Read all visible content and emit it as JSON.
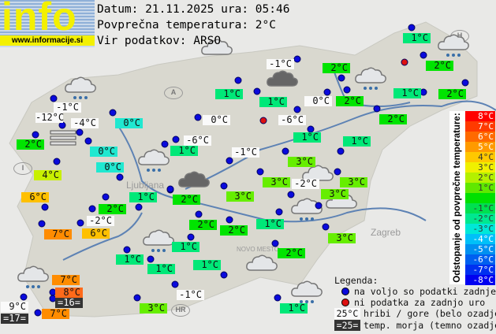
{
  "logo": {
    "text": "info",
    "url": "www.informacije.si"
  },
  "header": {
    "date_line": "Datum: 21.11.2025 ura: 05:46",
    "avg_line": "Povprečna temperatura: 2°C",
    "source_line": "Vir podatkov: ARSO"
  },
  "map_labels": {
    "city1": "Ljubljana",
    "city2": "Zagreb",
    "city3": "NOVO MESTO",
    "country_a": "A",
    "country_i": "I",
    "country_h": "H",
    "country_hr": "HR"
  },
  "label_colors": {
    "9°C": "#fafafa",
    "8°C": "#ff6a1a",
    "7°C": "#ff8c00",
    "6°C": "#ffc000",
    "4°C": "#c8f000",
    "3°C": "#66ee00",
    "2°C": "#00e400",
    "1°C": "#00e878",
    "0°C": "#20e8d0"
  },
  "stations": [
    {
      "t": "1°C",
      "k": "land"
    },
    {
      "t": "2°C",
      "k": "land"
    },
    {
      "t": "-1°C",
      "k": "mtn"
    },
    {
      "t": "2°C",
      "k": "land"
    },
    {
      "t": "1°C",
      "k": "land"
    },
    {
      "t": "1°C",
      "k": "land"
    },
    {
      "t": "0°C",
      "k": "mtn"
    },
    {
      "t": "2°C",
      "k": "land"
    },
    {
      "t": "1°C",
      "k": "land"
    },
    {
      "t": "2°C",
      "k": "land"
    },
    {
      "t": "2°C",
      "k": "land"
    },
    {
      "t": "-6°C",
      "k": "mtn"
    },
    {
      "t": "0°C",
      "k": "mtn"
    },
    {
      "t": "-6°C",
      "k": "mtn"
    },
    {
      "t": "1°C",
      "k": "land"
    },
    {
      "t": "1°C",
      "k": "land"
    },
    {
      "t": "1°C",
      "k": "land"
    },
    {
      "t": "-1°C",
      "k": "mtn"
    },
    {
      "t": "3°C",
      "k": "land"
    },
    {
      "t": "3°C",
      "k": "land"
    },
    {
      "t": "-2°C",
      "k": "mtn"
    },
    {
      "t": "3°C",
      "k": "land"
    },
    {
      "t": "3°C",
      "k": "land"
    },
    {
      "t": "3°C",
      "k": "land"
    },
    {
      "t": "2°C",
      "k": "land"
    },
    {
      "t": "2°C",
      "k": "land"
    },
    {
      "t": "2°C",
      "k": "land"
    },
    {
      "t": "1°C",
      "k": "land"
    },
    {
      "t": "3°C",
      "k": "land"
    },
    {
      "t": "2°C",
      "k": "land"
    },
    {
      "t": "1°C",
      "k": "land"
    },
    {
      "t": "1°C",
      "k": "land"
    },
    {
      "t": "-1°C",
      "k": "mtn"
    },
    {
      "t": "1°C",
      "k": "land"
    },
    {
      "t": "1°C",
      "k": "land"
    },
    {
      "t": "1°C",
      "k": "land"
    },
    {
      "t": "7°C",
      "k": "land"
    },
    {
      "t": "8°C",
      "k": "land"
    },
    {
      "t": "=16=",
      "k": "sea"
    },
    {
      "t": "9°C",
      "k": "mtn"
    },
    {
      "t": "=17=",
      "k": "sea"
    },
    {
      "t": "7°C",
      "k": "land"
    },
    {
      "t": "3°C",
      "k": "land"
    },
    {
      "t": "-1°C",
      "k": "mtn"
    },
    {
      "t": "-12°C",
      "k": "mtn"
    },
    {
      "t": "-4°C",
      "k": "mtn"
    },
    {
      "t": "2°C",
      "k": "land"
    },
    {
      "t": "0°C",
      "k": "land"
    },
    {
      "t": "0°C",
      "k": "land"
    },
    {
      "t": "0°C",
      "k": "land"
    },
    {
      "t": "4°C",
      "k": "land"
    },
    {
      "t": "6°C",
      "k": "land"
    },
    {
      "t": "2°C",
      "k": "land"
    },
    {
      "t": "1°C",
      "k": "land"
    },
    {
      "t": "-2°C",
      "k": "mtn"
    },
    {
      "t": "7°C",
      "k": "land"
    },
    {
      "t": "6°C",
      "k": "land"
    }
  ],
  "marker_colors": {
    "data": "#0a0adc",
    "no_data": "#dd1111"
  },
  "weather_icons": [
    "rain-cloud",
    "light-cloud",
    "fog",
    "dark-cloud",
    "rain-cloud",
    "dark-cloud",
    "rain-cloud",
    "rain-cloud",
    "light-cloud",
    "light-cloud",
    "rain-cloud",
    "light-cloud",
    "rain-cloud",
    "rain-cloud",
    "rain-cloud"
  ],
  "scale": {
    "title": "Odstopanje od povprečne temperature:",
    "steps": [
      {
        "label": "8°C",
        "color": "#ff0000"
      },
      {
        "label": "7°C",
        "color": "#ff3a00"
      },
      {
        "label": "6°C",
        "color": "#ff6a00"
      },
      {
        "label": "5°C",
        "color": "#ff9a00"
      },
      {
        "label": "4°C",
        "color": "#ffc800"
      },
      {
        "label": "3°C",
        "color": "#f0f000"
      },
      {
        "label": "2°C",
        "color": "#b4f000"
      },
      {
        "label": "1°C",
        "color": "#60e800"
      },
      {
        "label": "",
        "color": "#00e000"
      },
      {
        "label": "-1°C",
        "color": "#00e050"
      },
      {
        "label": "-2°C",
        "color": "#00e890"
      },
      {
        "label": "-3°C",
        "color": "#00e8d8"
      },
      {
        "label": "-4°C",
        "color": "#00c0f8"
      },
      {
        "label": "-5°C",
        "color": "#0090f0"
      },
      {
        "label": "-6°C",
        "color": "#0060f0"
      },
      {
        "label": "-7°C",
        "color": "#0030f0"
      },
      {
        "label": "-8°C",
        "color": "#0000f0"
      }
    ]
  },
  "legend": {
    "title": "Legenda:",
    "available": "na voljo so podatki zadnje ure",
    "missing": "ni podatka za zadnjo uro",
    "mountain_sample": "25°C",
    "mountain_text": "hribi / gore (belo ozadje)",
    "sea_sample": "=25=",
    "sea_text": "temp. morja (temno ozadje)"
  }
}
